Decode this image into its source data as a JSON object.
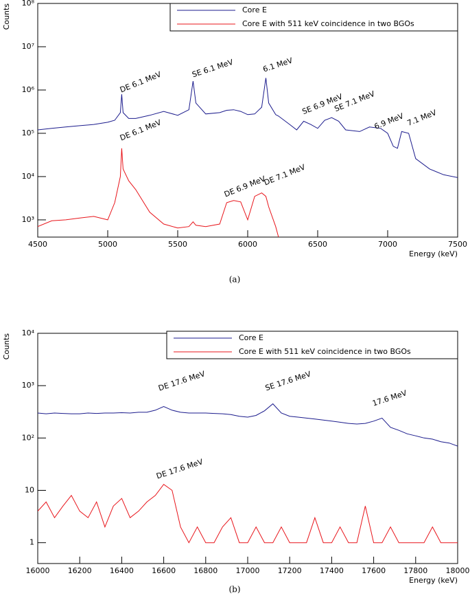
{
  "chart_data": [
    {
      "type": "line",
      "caption": "(a)",
      "ylabel": "Counts",
      "xlabel": "Energy (keV)",
      "log_y": true,
      "xlim": [
        4500,
        7500
      ],
      "xticks": [
        4500,
        5000,
        5500,
        6000,
        6500,
        7000,
        7500
      ],
      "ylim": [
        400,
        100000000
      ],
      "yticks": [
        {
          "value": 1000,
          "label": "10³"
        },
        {
          "value": 10000,
          "label": "10⁴"
        },
        {
          "value": 100000,
          "label": "10⁵"
        },
        {
          "value": 1000000,
          "label": "10⁶"
        },
        {
          "value": 10000000,
          "label": "10⁷"
        },
        {
          "value": 100000000,
          "label": "10⁸"
        }
      ],
      "x": [
        4500,
        4600,
        4700,
        4800,
        4900,
        5000,
        5050,
        5090,
        5100,
        5110,
        5150,
        5200,
        5300,
        5400,
        5500,
        5580,
        5610,
        5630,
        5700,
        5800,
        5850,
        5900,
        5950,
        6000,
        6050,
        6100,
        6130,
        6150,
        6200,
        6220,
        6300,
        6350,
        6400,
        6450,
        6500,
        6550,
        6600,
        6650,
        6700,
        6800,
        6870,
        6950,
        7000,
        7040,
        7070,
        7100,
        7150,
        7200,
        7300,
        7400,
        7500
      ],
      "series": [
        {
          "name": "Core E",
          "color": "#1a1a8c",
          "values": [
            120000,
            130000,
            140000,
            150000,
            160000,
            180000,
            200000,
            300000,
            800000,
            300000,
            220000,
            220000,
            260000,
            320000,
            260000,
            350000,
            1600000,
            500000,
            280000,
            300000,
            340000,
            350000,
            320000,
            270000,
            280000,
            400000,
            1900000,
            500000,
            270000,
            250000,
            160000,
            120000,
            190000,
            160000,
            130000,
            200000,
            230000,
            190000,
            120000,
            110000,
            140000,
            130000,
            100000,
            50000,
            45000,
            110000,
            100000,
            26000,
            15000,
            11000,
            9500
          ]
        },
        {
          "name": "Core E with 511 keV coincidence in two BGOs",
          "color": "#e8141a",
          "values": [
            700,
            950,
            1000,
            1100,
            1200,
            1000,
            2500,
            10000,
            45000,
            15000,
            8000,
            5000,
            1500,
            800,
            650,
            700,
            900,
            750,
            700,
            800,
            2500,
            2800,
            2600,
            1000,
            3500,
            4200,
            3500,
            2000,
            700,
            400,
            null,
            null,
            null,
            null,
            null,
            null,
            null,
            null,
            null,
            null,
            null,
            null,
            null,
            null,
            null,
            null,
            null,
            null,
            null,
            null,
            null
          ]
        }
      ],
      "annotations": [
        "DE 6.1 MeV",
        "SE 6.1 MeV",
        "6.1 MeV",
        "SE 6.9 MeV",
        "SE 7.1 MeV",
        "6.9 MeV",
        "7.1 MeV",
        "DE 6.1 MeV",
        "DE 6.9 MeV",
        "DE 7.1 MeV"
      ]
    },
    {
      "type": "line",
      "caption": "(b)",
      "ylabel": "Counts",
      "xlabel": "Energy (keV)",
      "log_y": true,
      "xlim": [
        16000,
        18000
      ],
      "xticks": [
        16000,
        16200,
        16400,
        16600,
        16800,
        17000,
        17200,
        17400,
        17600,
        17800,
        18000
      ],
      "ylim": [
        0.4,
        10000
      ],
      "yticks": [
        1,
        10,
        {
          "value": 100,
          "label": "10²"
        },
        {
          "value": 1000,
          "label": "10³"
        },
        {
          "value": 10000,
          "label": "10⁴"
        }
      ],
      "x": [
        16000,
        16040,
        16080,
        16120,
        16160,
        16200,
        16240,
        16280,
        16320,
        16360,
        16400,
        16440,
        16480,
        16520,
        16560,
        16600,
        16640,
        16680,
        16720,
        16760,
        16800,
        16840,
        16880,
        16920,
        16960,
        17000,
        17040,
        17080,
        17120,
        17160,
        17200,
        17240,
        17280,
        17320,
        17360,
        17400,
        17440,
        17480,
        17520,
        17560,
        17600,
        17640,
        17680,
        17720,
        17760,
        17800,
        17840,
        17880,
        17920,
        17960,
        18000
      ],
      "series": [
        {
          "name": "Core E",
          "color": "#1a1a8c",
          "values": [
            300,
            290,
            300,
            295,
            290,
            290,
            300,
            295,
            300,
            300,
            305,
            300,
            310,
            310,
            340,
            400,
            340,
            310,
            300,
            300,
            300,
            295,
            290,
            280,
            260,
            250,
            270,
            330,
            450,
            300,
            260,
            250,
            240,
            230,
            220,
            210,
            200,
            190,
            185,
            190,
            210,
            240,
            160,
            140,
            120,
            110,
            100,
            95,
            85,
            80,
            70
          ]
        },
        {
          "name": "Core E with 511 keV coincidence in two BGOs",
          "color": "#e8141a",
          "values": [
            4,
            6,
            3,
            5,
            8,
            4,
            3,
            6,
            2,
            5,
            7,
            3,
            4,
            6,
            8,
            13,
            10,
            2,
            1,
            2,
            1,
            1,
            2,
            3,
            1,
            1,
            2,
            1,
            1,
            2,
            1,
            1,
            1,
            3,
            1,
            1,
            2,
            1,
            1,
            5,
            1,
            1,
            2,
            1,
            1,
            1,
            1,
            2,
            1,
            1,
            1
          ]
        }
      ],
      "annotations": [
        "DE 17.6 MeV",
        "SE 17.6 MeV",
        "17.6 MeV",
        "DE 17.6 MeV"
      ]
    }
  ]
}
